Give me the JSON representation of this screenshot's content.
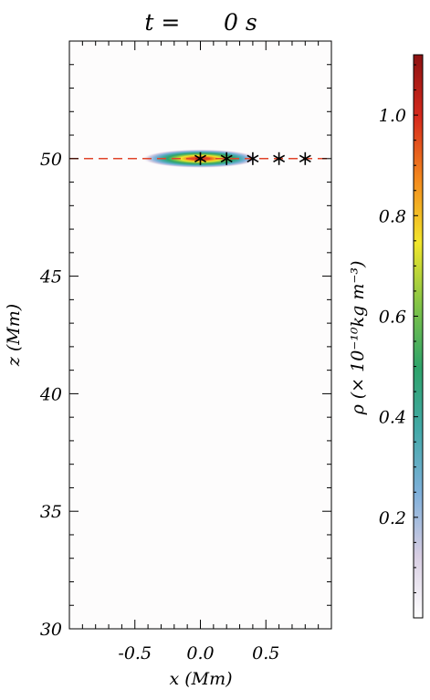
{
  "chart_data": {
    "type": "heatmap",
    "title": "t =      0 s",
    "xlabel": "x (Mm)",
    "ylabel": "z (Mm)",
    "xlim": [
      -1.0,
      1.0
    ],
    "ylim": [
      30,
      55
    ],
    "x_ticks": [
      -0.5,
      0.0,
      0.5
    ],
    "x_tick_labels": [
      "-0.5",
      "0.0",
      "0.5"
    ],
    "y_ticks": [
      30,
      35,
      40,
      45,
      50
    ],
    "y_tick_labels": [
      "30",
      "35",
      "40",
      "45",
      "50"
    ],
    "reference_line": {
      "z": 50,
      "color": "#e0442a",
      "style": "dashed"
    },
    "markers": {
      "symbol": "asterisk",
      "points": [
        {
          "x": 0.0,
          "z": 50
        },
        {
          "x": 0.2,
          "z": 50
        },
        {
          "x": 0.4,
          "z": 50
        },
        {
          "x": 0.6,
          "z": 50
        },
        {
          "x": 0.8,
          "z": 50
        }
      ]
    },
    "density_blob": {
      "center_x": 0.0,
      "center_z": 50,
      "half_width_x": 0.45,
      "half_height_z": 0.4,
      "peak": 1.1
    },
    "colorbar": {
      "label": "ρ (× 10⁻¹⁰kg m⁻³)",
      "range": [
        0.0,
        1.12
      ],
      "ticks": [
        0.2,
        0.4,
        0.6,
        0.8,
        1.0
      ],
      "tick_labels": [
        "0.2",
        "0.4",
        "0.6",
        "0.8",
        "1.0"
      ],
      "colormap": [
        "#ffffff",
        "#d7cde2",
        "#7fb0da",
        "#44a9a8",
        "#2ea36a",
        "#82c447",
        "#f2e62c",
        "#f38a1e",
        "#d62a1d",
        "#8c1212"
      ]
    }
  }
}
